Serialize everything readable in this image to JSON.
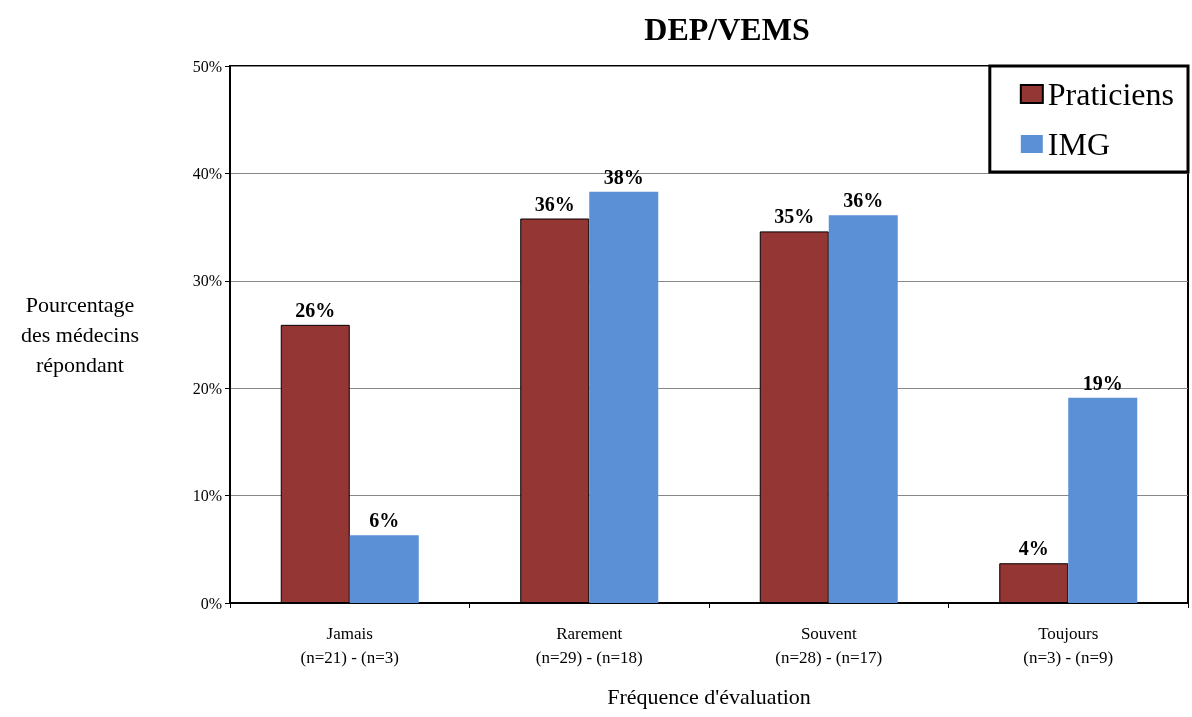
{
  "chart_data": {
    "type": "bar",
    "title": "DEP/VEMS",
    "xlabel": "Fréquence d'évaluation",
    "ylabel": "Pourcentage\ndes médecins\nrépondant",
    "categories": [
      "Jamais\n(n=21) - (n=3)",
      "Rarement\n(n=29) - (n=18)",
      "Souvent\n(n=28) - (n=17)",
      "Toujours\n(n=3) - (n=9)"
    ],
    "series": [
      {
        "name": "Praticiens",
        "color": "#943634",
        "values": [
          25.9,
          35.8,
          34.6,
          3.7
        ],
        "value_labels": [
          "26%",
          "36%",
          "35%",
          "4%"
        ]
      },
      {
        "name": "IMG",
        "color": "#5b8fd6",
        "values": [
          6.3,
          38.3,
          36.1,
          19.1
        ],
        "value_labels": [
          "6%",
          "38%",
          "36%",
          "19%"
        ]
      }
    ],
    "ylim": [
      0,
      50
    ],
    "yticks": [
      {
        "value": 0,
        "label": "0%"
      },
      {
        "value": 10,
        "label": "10%"
      },
      {
        "value": 20,
        "label": "20%"
      },
      {
        "value": 30,
        "label": "30%"
      },
      {
        "value": 40,
        "label": "40%"
      },
      {
        "value": 50,
        "label": "50%"
      }
    ],
    "grid": "y",
    "legend": "top right"
  }
}
